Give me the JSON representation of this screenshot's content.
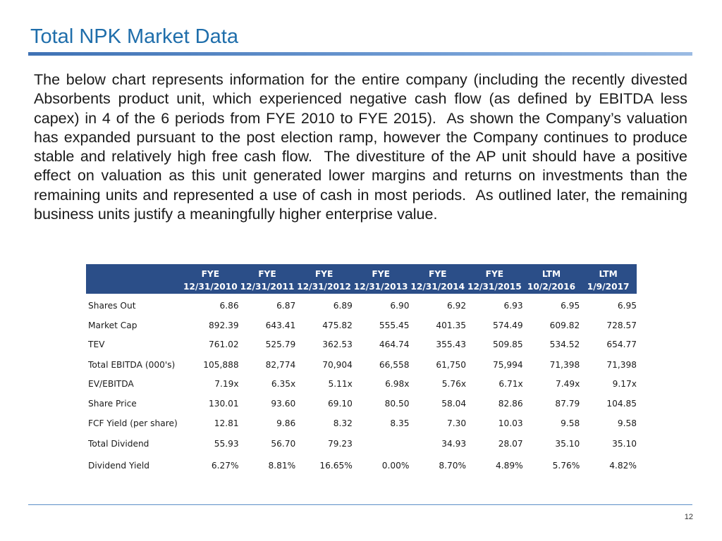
{
  "slide": {
    "title": "Total NPK Market Data",
    "body": "The below chart represents information for the entire company (including the recently divested Absorbents product unit, which experienced negative cash flow (as defined by EBITDA less capex) in 4 of the 6 periods from FYE 2010 to FYE 2015).  As shown the Company’s valuation has expanded pursuant to the post election ramp, however the Company continues to produce stable and relatively high free cash flow.  The divestiture of the AP unit should have a positive effect on valuation as this unit generated lower margins and returns on investments than the remaining units and represented a use of cash in most periods.  As outlined later, the remaining business units justify a meaningfully higher enterprise value.",
    "page_number": "12",
    "colors": {
      "title": "#1f6eab",
      "header_bg": "#2b4e88",
      "rule": "#3f72b4"
    }
  },
  "table": {
    "columns": [
      {
        "line1": "FYE",
        "line2": "12/31/2010"
      },
      {
        "line1": "FYE",
        "line2": "12/31/2011"
      },
      {
        "line1": "FYE",
        "line2": "12/31/2012"
      },
      {
        "line1": "FYE",
        "line2": "12/31/2013"
      },
      {
        "line1": "FYE",
        "line2": "12/31/2014"
      },
      {
        "line1": "FYE",
        "line2": "12/31/2015"
      },
      {
        "line1": "LTM",
        "line2": "10/2/2016"
      },
      {
        "line1": "LTM",
        "line2": "1/9/2017"
      }
    ],
    "rows": [
      {
        "label": "Shares Out",
        "values": [
          "6.86",
          "6.87",
          "6.89",
          "6.90",
          "6.92",
          "6.93",
          "6.95",
          "6.95"
        ]
      },
      {
        "label": "Market Cap",
        "values": [
          "892.39",
          "643.41",
          "475.82",
          "555.45",
          "401.35",
          "574.49",
          "609.82",
          "728.57"
        ]
      },
      {
        "label": "TEV",
        "values": [
          "761.02",
          "525.79",
          "362.53",
          "464.74",
          "355.43",
          "509.85",
          "534.52",
          "654.77"
        ]
      },
      {
        "label": "Total EBITDA (000's)",
        "values": [
          "105,888",
          "82,774",
          "70,904",
          "66,558",
          "61,750",
          "75,994",
          "71,398",
          "71,398"
        ]
      },
      {
        "label": "EV/EBITDA",
        "values": [
          "7.19x",
          "6.35x",
          "5.11x",
          "6.98x",
          "5.76x",
          "6.71x",
          "7.49x",
          "9.17x"
        ]
      },
      {
        "label": "Share Price",
        "values": [
          "130.01",
          "93.60",
          "69.10",
          "80.50",
          "58.04",
          "82.86",
          "87.79",
          "104.85"
        ]
      },
      {
        "label": "FCF Yield (per share)",
        "values": [
          "12.81",
          "9.86",
          "8.32",
          "8.35",
          "7.30",
          "10.03",
          "9.58",
          "9.58"
        ]
      },
      {
        "label": "Total Dividend",
        "values": [
          "55.93",
          "56.70",
          "79.23",
          "",
          "34.93",
          "28.07",
          "35.10",
          "35.10"
        ]
      },
      {
        "label": "Dividend Yield",
        "values": [
          "6.27%",
          "8.81%",
          "16.65%",
          "0.00%",
          "8.70%",
          "4.89%",
          "5.76%",
          "4.82%"
        ]
      }
    ]
  }
}
